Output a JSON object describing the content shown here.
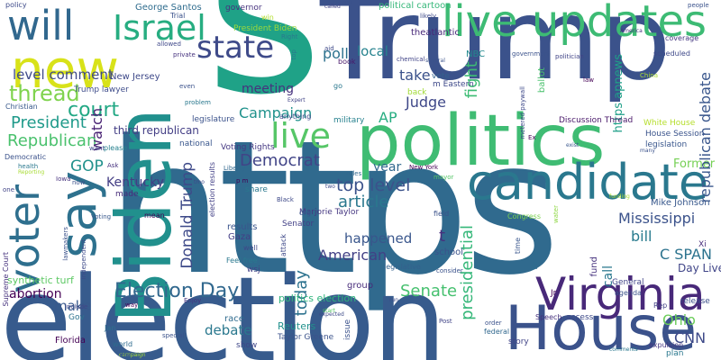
{
  "words": [
    {
      "text": "https",
      "color": "#306a8e"
    },
    {
      "text": "Trump",
      "color": "#3b528b"
    },
    {
      "text": "election",
      "color": "#375b8d"
    },
    {
      "text": "s",
      "color": "#1fa287"
    },
    {
      "text": "Biden",
      "color": "#21908d"
    },
    {
      "text": "politics",
      "color": "#3fbc73"
    },
    {
      "text": "candidate",
      "color": "#2a788e"
    },
    {
      "text": "House",
      "color": "#3b528b"
    },
    {
      "text": "Virginia",
      "color": "#482979"
    },
    {
      "text": "say",
      "color": "#2d718e"
    },
    {
      "text": "new",
      "color": "#d8e219"
    },
    {
      "text": "voter",
      "color": "#2e6f8e"
    },
    {
      "text": "live updates",
      "color": "#3dbb74"
    },
    {
      "text": "will",
      "color": "#31688e"
    },
    {
      "text": "Israel",
      "color": "#27ad81"
    },
    {
      "text": "state",
      "color": "#3e4a89"
    },
    {
      "text": "live",
      "color": "#56c667"
    },
    {
      "text": "Election Day",
      "color": "#31688e"
    },
    {
      "text": "thread",
      "color": "#7fd34e"
    },
    {
      "text": "court",
      "color": "#22a884"
    },
    {
      "text": "Republican",
      "color": "#4ac16d"
    },
    {
      "text": "President",
      "color": "#1f9a8a"
    },
    {
      "text": "level comment",
      "color": "#3e4989"
    },
    {
      "text": "GOP",
      "color": "#21918c"
    },
    {
      "text": "watch",
      "color": "#482173"
    },
    {
      "text": "Kentucky",
      "color": "#433d84"
    },
    {
      "text": "Campaign",
      "color": "#20928c"
    },
    {
      "text": "meeting",
      "color": "#46327e"
    },
    {
      "text": "Democrat",
      "color": "#414487"
    },
    {
      "text": "top level",
      "color": "#3b528b"
    },
    {
      "text": "Donald Trump",
      "color": "#3e4a89"
    },
    {
      "text": "today",
      "color": "#2c728e"
    },
    {
      "text": "Judge",
      "color": "#3f4889"
    },
    {
      "text": "take",
      "color": "#3b528b"
    },
    {
      "text": "fight",
      "color": "#3dbc74"
    },
    {
      "text": "poll",
      "color": "#2c718e"
    },
    {
      "text": "local",
      "color": "#26828e"
    },
    {
      "text": "AP",
      "color": "#27ad81"
    },
    {
      "text": "year",
      "color": "#31688e"
    },
    {
      "text": "article",
      "color": "#2a788e"
    },
    {
      "text": "happened",
      "color": "#39568c"
    },
    {
      "text": "American",
      "color": "#424086"
    },
    {
      "text": "Senate",
      "color": "#46c06f"
    },
    {
      "text": "presidential",
      "color": "#35b779"
    },
    {
      "text": "t",
      "color": "#472f7d"
    },
    {
      "text": "Mississippi",
      "color": "#3b528b"
    },
    {
      "text": "bill",
      "color": "#297b8e"
    },
    {
      "text": "C SPAN",
      "color": "#2c738e"
    },
    {
      "text": "Former",
      "color": "#75d054"
    },
    {
      "text": "republican debate",
      "color": "#39568c"
    },
    {
      "text": "https apnews",
      "color": "#1fa088"
    },
    {
      "text": "Mike Johnson",
      "color": "#38588c"
    },
    {
      "text": "Day Live",
      "color": "#404588"
    },
    {
      "text": "Ohio",
      "color": "#6ccd5a"
    },
    {
      "text": "CNN",
      "color": "#3e4a89"
    },
    {
      "text": "debate",
      "color": "#2a788e"
    },
    {
      "text": "third republican",
      "color": "#433e85"
    },
    {
      "text": "synthetic turf",
      "color": "#5cc863"
    },
    {
      "text": "abortion",
      "color": "#440154"
    },
    {
      "text": "make",
      "color": "#38598c"
    },
    {
      "text": "call",
      "color": "#2a788e"
    },
    {
      "text": "fund",
      "color": "#46327e"
    },
    {
      "text": "politics election",
      "color": "#2fb47c"
    },
    {
      "text": "George Santos",
      "color": "#2f6c8e"
    },
    {
      "text": "political cartoon",
      "color": "#35b779"
    },
    {
      "text": "theatlantic",
      "color": "#482878"
    },
    {
      "text": "Taylor Greene",
      "color": "#3b528b"
    },
    {
      "text": "Reuters",
      "color": "#21918c"
    },
    {
      "text": "race",
      "color": "#2f6b8e"
    },
    {
      "text": "results",
      "color": "#3a548c"
    },
    {
      "text": "Gaza",
      "color": "#433e85"
    },
    {
      "text": "Marjorie Taylor",
      "color": "#453781"
    },
    {
      "text": "Senator",
      "color": "#424086"
    },
    {
      "text": "Florida",
      "color": "#440154"
    },
    {
      "text": "issue",
      "color": "#3b528b"
    },
    {
      "text": "school",
      "color": "#3b528b"
    },
    {
      "text": "group",
      "color": "#472c7a"
    },
    {
      "text": "New Jersey",
      "color": "#3e4989"
    },
    {
      "text": "Voting Rights",
      "color": "#453882"
    },
    {
      "text": "NBC",
      "color": "#23898e"
    },
    {
      "text": "Discussion Thread",
      "color": "#481769"
    },
    {
      "text": "House Session",
      "color": "#3a538b"
    },
    {
      "text": "White House",
      "color": "#b5de2b"
    },
    {
      "text": "legislation",
      "color": "#39568c"
    },
    {
      "text": "Trump lawyer",
      "color": "#3e4c8a"
    },
    {
      "text": "President Biden",
      "color": "#9bd93c"
    },
    {
      "text": "governor",
      "color": "#46327e"
    },
    {
      "text": "m Eastern",
      "color": "#3e4989"
    },
    {
      "text": "vote",
      "color": "#34618d"
    },
    {
      "text": "ballot",
      "color": "#4ac16d"
    },
    {
      "text": "Christian",
      "color": "#38598c"
    },
    {
      "text": "legislature",
      "color": "#3b528b"
    },
    {
      "text": "military",
      "color": "#26818e"
    },
    {
      "text": "anything",
      "color": "#3e4989"
    },
    {
      "text": "plan",
      "color": "#2a788e"
    },
    {
      "text": "agenda",
      "color": "#3b528b"
    },
    {
      "text": "General",
      "color": "#414487"
    },
    {
      "text": "Rep",
      "color": "#424186"
    },
    {
      "text": "release",
      "color": "#3c4f8a"
    },
    {
      "text": "Xi",
      "color": "#472d7b"
    },
    {
      "text": "story",
      "color": "#414487"
    },
    {
      "text": "federal",
      "color": "#31688e"
    },
    {
      "text": "access",
      "color": "#3e4a89"
    },
    {
      "text": "Speech",
      "color": "#46327e"
    },
    {
      "text": "expulsion",
      "color": "#453581"
    },
    {
      "text": "Jan",
      "color": "#2d718e"
    },
    {
      "text": "world",
      "color": "#2f6b8e"
    },
    {
      "text": "show",
      "color": "#3f4788"
    },
    {
      "text": "Gov",
      "color": "#2c728e"
    },
    {
      "text": "include",
      "color": "#404688"
    },
    {
      "text": "Supreme Court",
      "color": "#46327e"
    },
    {
      "text": "lawmakers",
      "color": "#3b528b"
    },
    {
      "text": "independent",
      "color": "#3e4a89"
    },
    {
      "text": "Feel free",
      "color": "#2a788e"
    },
    {
      "text": "wsj",
      "color": "#424086"
    },
    {
      "text": "well",
      "color": "#3f4889"
    },
    {
      "text": "attack",
      "color": "#3e4989"
    },
    {
      "text": "legislative",
      "color": "#34618d"
    },
    {
      "text": "Party",
      "color": "#2f6c8e"
    },
    {
      "text": "time",
      "color": "#39568c"
    },
    {
      "text": "consider",
      "color": "#3b528b"
    },
    {
      "text": "Congress",
      "color": "#7ad151"
    },
    {
      "text": "water",
      "color": "#8fd744"
    },
    {
      "text": "Black",
      "color": "#3e4989"
    },
    {
      "text": "field",
      "color": "#3b528b"
    },
    {
      "text": "mayor",
      "color": "#56c667"
    },
    {
      "text": "New York",
      "color": "#440154"
    },
    {
      "text": "rules",
      "color": "#31688e"
    },
    {
      "text": "share",
      "color": "#2a788e"
    },
    {
      "text": "org",
      "color": "#3a548c"
    },
    {
      "text": "election results",
      "color": "#424086"
    },
    {
      "text": "Liberty",
      "color": "#31688e"
    },
    {
      "text": "mean",
      "color": "#440154"
    },
    {
      "text": "made",
      "color": "#472c7a"
    },
    {
      "text": "Voting",
      "color": "#38588c"
    },
    {
      "text": "Iowa",
      "color": "#46327e"
    },
    {
      "text": "health",
      "color": "#2a788e"
    },
    {
      "text": "Democratic",
      "color": "#3b528b"
    },
    {
      "text": "Reporting",
      "color": "#a8db34"
    },
    {
      "text": "Ask",
      "color": "#46327e"
    },
    {
      "text": "want",
      "color": "#3e4a89"
    },
    {
      "text": "please",
      "color": "#26818e"
    },
    {
      "text": "national",
      "color": "#39568c"
    },
    {
      "text": "problem",
      "color": "#2a788e"
    },
    {
      "text": "Expert",
      "color": "#414487"
    },
    {
      "text": "even",
      "color": "#3b528b"
    },
    {
      "text": "private",
      "color": "#46327e"
    },
    {
      "text": "allowed",
      "color": "#3f4889"
    },
    {
      "text": "Trial",
      "color": "#3b528b"
    },
    {
      "text": "policy",
      "color": "#3e4a89"
    },
    {
      "text": "win",
      "color": "#b2dd2c"
    },
    {
      "text": "Right",
      "color": "#2a788e"
    },
    {
      "text": "aid",
      "color": "#3e4a89"
    },
    {
      "text": "book",
      "color": "#48186a"
    },
    {
      "text": "several",
      "color": "#3b528b"
    },
    {
      "text": "chemical",
      "color": "#414487"
    },
    {
      "text": "likely",
      "color": "#3e4a89"
    },
    {
      "text": "government",
      "color": "#3b528b"
    },
    {
      "text": "politician",
      "color": "#414487"
    },
    {
      "text": "scheduled",
      "color": "#3e4989"
    },
    {
      "text": "coverage",
      "color": "#453781"
    },
    {
      "text": "people",
      "color": "#3b528b"
    },
    {
      "text": "America",
      "color": "#46327e"
    },
    {
      "text": "law",
      "color": "#440154"
    },
    {
      "text": "China",
      "color": "#aadc32"
    },
    {
      "text": "metered paywall",
      "color": "#3e4989"
    },
    {
      "text": "Ex",
      "color": "#440154"
    },
    {
      "text": "many",
      "color": "#3b528b"
    },
    {
      "text": "exist",
      "color": "#39568c"
    },
    {
      "text": "back",
      "color": "#a2da37"
    },
    {
      "text": "go",
      "color": "#2a788e"
    },
    {
      "text": "order",
      "color": "#3b528b"
    },
    {
      "text": "Post",
      "color": "#414487"
    },
    {
      "text": "expected",
      "color": "#3e4a89"
    },
    {
      "text": "start",
      "color": "#56c667"
    },
    {
      "text": "way",
      "color": "#440154"
    },
    {
      "text": "Enjoy",
      "color": "#46327e"
    },
    {
      "text": "special",
      "color": "#3b528b"
    },
    {
      "text": "comments",
      "color": "#2a788e"
    },
    {
      "text": "campaign",
      "color": "#a5db36"
    },
    {
      "text": "Jr",
      "color": "#440154"
    },
    {
      "text": "tmo",
      "color": "#3e4989"
    },
    {
      "text": "p m",
      "color": "#440154"
    },
    {
      "text": "two",
      "color": "#3e4a89"
    },
    {
      "text": "Bans",
      "color": "#39568c"
    },
    {
      "text": "called",
      "color": "#414487"
    },
    {
      "text": "support",
      "color": "#3b528b"
    },
    {
      "text": "funding",
      "color": "#aadc32"
    },
    {
      "text": "run",
      "color": "#3e4a89"
    },
    {
      "text": "top",
      "color": "#2a788e"
    },
    {
      "text": "one",
      "color": "#414487"
    },
    {
      "text": "now",
      "color": "#3b528b"
    }
  ]
}
